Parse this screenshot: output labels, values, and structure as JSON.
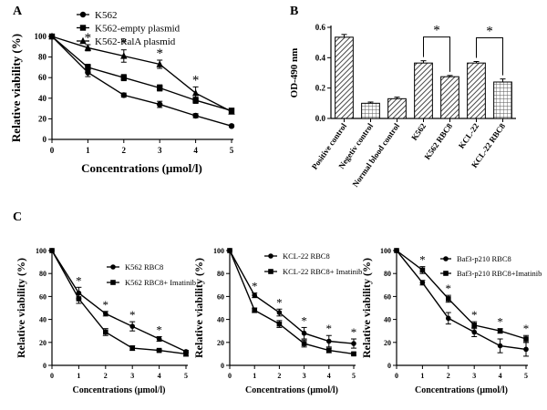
{
  "figure": {
    "panel_labels": [
      "A",
      "B",
      "C"
    ]
  },
  "chart_data": [
    {
      "id": "A",
      "type": "line",
      "title": "",
      "xlabel": "Concentrations (μmol/l)",
      "ylabel": "Relative viability (%)",
      "x": [
        0,
        1,
        2,
        3,
        4,
        5
      ],
      "xlim": [
        0,
        5
      ],
      "ylim": [
        0,
        100
      ],
      "xticks": [
        "0",
        "1",
        "2",
        "3",
        "4",
        "5"
      ],
      "yticks": [
        "0",
        "20",
        "40",
        "60",
        "80",
        "100"
      ],
      "legend": "top-right",
      "series": [
        {
          "name": "K562",
          "marker": "circle",
          "values": [
            100,
            65,
            43,
            34,
            23,
            13
          ],
          "errors": [
            0,
            4,
            2,
            3,
            2,
            1
          ]
        },
        {
          "name": "K562-empty plasmid",
          "marker": "square",
          "values": [
            100,
            70,
            60,
            50,
            38,
            28
          ],
          "errors": [
            0,
            3,
            3,
            3,
            3,
            2
          ]
        },
        {
          "name": "K562-RalA plasmid",
          "marker": "triangle",
          "values": [
            100,
            89,
            81,
            73,
            45,
            27
          ],
          "errors": [
            0,
            3,
            6,
            4,
            6,
            2
          ]
        }
      ],
      "significance": [
        {
          "x": 1,
          "label": "*"
        },
        {
          "x": 2,
          "label": "*"
        },
        {
          "x": 3,
          "label": "*"
        },
        {
          "x": 4,
          "label": "*"
        }
      ]
    },
    {
      "id": "B",
      "type": "bar",
      "title": "",
      "xlabel": "",
      "ylabel": "OD-490 nm",
      "ylim": [
        0,
        0.6
      ],
      "yticks": [
        "0.0",
        "0.2",
        "0.4",
        "0.6"
      ],
      "categories": [
        "Positive control",
        "Negetiv control",
        "Normal blood control",
        "K562",
        "K562 RBC8",
        "KCL-22",
        "KCL-22 RBC8"
      ],
      "values": [
        0.535,
        0.1,
        0.13,
        0.365,
        0.275,
        0.365,
        0.24
      ],
      "errors": [
        0.018,
        0.008,
        0.01,
        0.015,
        0.008,
        0.01,
        0.02
      ],
      "significance": [
        {
          "from": 3,
          "to": 4,
          "label": "*"
        },
        {
          "from": 5,
          "to": 6,
          "label": "*"
        }
      ]
    },
    {
      "id": "C1",
      "type": "line",
      "title": "",
      "xlabel": "Concentrations (μmol/l)",
      "ylabel": "Relative viability (%)",
      "x": [
        0,
        1,
        2,
        3,
        4,
        5
      ],
      "xlim": [
        0,
        5
      ],
      "ylim": [
        0,
        100
      ],
      "xticks": [
        "0",
        "1",
        "2",
        "3",
        "4",
        "5"
      ],
      "yticks": [
        "0",
        "20",
        "40",
        "60",
        "80",
        "100"
      ],
      "legend": "top-right",
      "series": [
        {
          "name": "K562 RBC8",
          "marker": "circle",
          "values": [
            100,
            63,
            45,
            34,
            23,
            12
          ],
          "errors": [
            0,
            5,
            2,
            4,
            2,
            1
          ]
        },
        {
          "name": "K562 RBC8+ Imatinib",
          "marker": "square",
          "values": [
            100,
            58,
            29,
            15,
            13,
            10
          ],
          "errors": [
            0,
            4,
            3,
            2,
            1,
            2
          ]
        }
      ],
      "significance": [
        {
          "x": 1,
          "label": "*"
        },
        {
          "x": 2,
          "label": "*"
        },
        {
          "x": 3,
          "label": "*"
        },
        {
          "x": 4,
          "label": "*"
        }
      ]
    },
    {
      "id": "C2",
      "type": "line",
      "title": "",
      "xlabel": "Concentrations (μmol/l)",
      "ylabel": "Relative viability (%)",
      "x": [
        0,
        1,
        2,
        3,
        4,
        5
      ],
      "xlim": [
        0,
        5
      ],
      "ylim": [
        0,
        100
      ],
      "xticks": [
        "0",
        "1",
        "2",
        "3",
        "4",
        "5"
      ],
      "yticks": [
        "0",
        "20",
        "40",
        "60",
        "80",
        "100"
      ],
      "legend": "top-right",
      "series": [
        {
          "name": "KCL-22 RBC8",
          "marker": "circle",
          "values": [
            100,
            61,
            46,
            28,
            21,
            19
          ],
          "errors": [
            0,
            2,
            3,
            5,
            5,
            4
          ]
        },
        {
          "name": "KCL-22 RBC8+ Imatinib",
          "marker": "square",
          "values": [
            100,
            48,
            36,
            19,
            13,
            10
          ],
          "errors": [
            0,
            2,
            3,
            3,
            2,
            1
          ]
        }
      ],
      "significance": [
        {
          "x": 1,
          "label": "*"
        },
        {
          "x": 2,
          "label": "*"
        },
        {
          "x": 3,
          "label": "*"
        },
        {
          "x": 4,
          "label": "*"
        },
        {
          "x": 5,
          "label": "*"
        }
      ]
    },
    {
      "id": "C3",
      "type": "line",
      "title": "",
      "xlabel": "Concentrations (μmol/l)",
      "ylabel": "Relative viability (%)",
      "x": [
        0,
        1,
        2,
        3,
        4,
        5
      ],
      "xlim": [
        0,
        5
      ],
      "ylim": [
        0,
        100
      ],
      "xticks": [
        "0",
        "1",
        "2",
        "3",
        "4",
        "5"
      ],
      "yticks": [
        "0",
        "20",
        "40",
        "60",
        "80",
        "100"
      ],
      "legend": "top-right",
      "series": [
        {
          "name": "Baf3-p210 RBC8",
          "marker": "circle",
          "values": [
            100,
            72,
            41,
            29,
            17,
            14
          ],
          "errors": [
            0,
            2,
            5,
            4,
            6,
            6
          ]
        },
        {
          "name": "Baf3-p210 RBC8+Imatinib",
          "marker": "square",
          "values": [
            100,
            83,
            58,
            35,
            30,
            23
          ],
          "errors": [
            0,
            3,
            3,
            3,
            2,
            3
          ]
        }
      ],
      "significance": [
        {
          "x": 1,
          "label": "*"
        },
        {
          "x": 2,
          "label": "*"
        },
        {
          "x": 3,
          "label": "*"
        },
        {
          "x": 4,
          "label": "*"
        },
        {
          "x": 5,
          "label": "*"
        }
      ]
    }
  ]
}
